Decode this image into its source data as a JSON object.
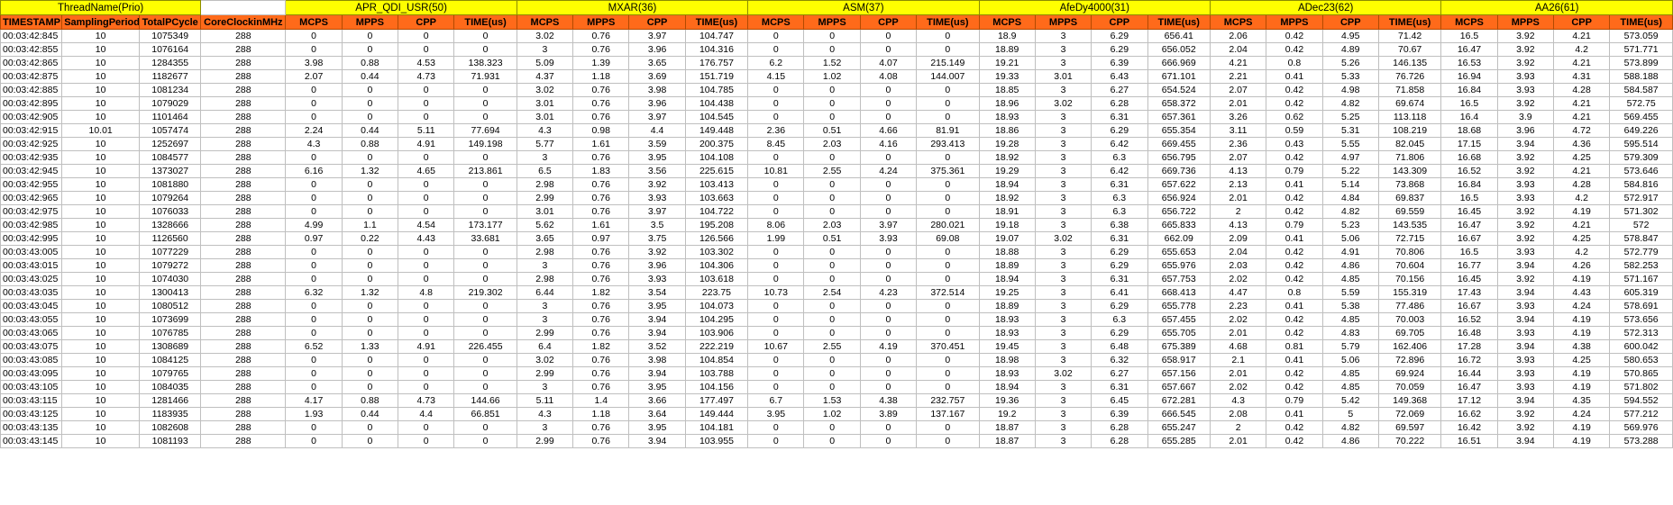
{
  "group_headers": [
    {
      "label": "ThreadName(Prio)",
      "span": 3
    },
    {
      "label": "",
      "span": 1
    },
    {
      "label": "APR_QDI_USR(50)",
      "span": 4
    },
    {
      "label": "MXAR(36)",
      "span": 4
    },
    {
      "label": "ASM(37)",
      "span": 4
    },
    {
      "label": "AfeDy4000(31)",
      "span": 4
    },
    {
      "label": "ADec23(62)",
      "span": 4
    },
    {
      "label": "AA26(61)",
      "span": 4
    }
  ],
  "columns": [
    "TIMESTAMP",
    "SamplingPeriod",
    "TotalPCycle",
    "CoreClockinMHz",
    "MCPS",
    "MPPS",
    "CPP",
    "TIME(us)",
    "MCPS",
    "MPPS",
    "CPP",
    "TIME(us)",
    "MCPS",
    "MPPS",
    "CPP",
    "TIME(us)",
    "MCPS",
    "MPPS",
    "CPP",
    "TIME(us)",
    "MCPS",
    "MPPS",
    "CPP",
    "TIME(us)",
    "MCPS",
    "MPPS",
    "CPP",
    "TIME(us)"
  ],
  "rows": [
    [
      "00:03:42:845",
      "10",
      "1075349",
      "288",
      "0",
      "0",
      "0",
      "0",
      "3.02",
      "0.76",
      "3.97",
      "104.747",
      "0",
      "0",
      "0",
      "0",
      "18.9",
      "3",
      "6.29",
      "656.41",
      "2.06",
      "0.42",
      "4.95",
      "71.42",
      "16.5",
      "3.92",
      "4.21",
      "573.059"
    ],
    [
      "00:03:42:855",
      "10",
      "1076164",
      "288",
      "0",
      "0",
      "0",
      "0",
      "3",
      "0.76",
      "3.96",
      "104.316",
      "0",
      "0",
      "0",
      "0",
      "18.89",
      "3",
      "6.29",
      "656.052",
      "2.04",
      "0.42",
      "4.89",
      "70.67",
      "16.47",
      "3.92",
      "4.2",
      "571.771"
    ],
    [
      "00:03:42:865",
      "10",
      "1284355",
      "288",
      "3.98",
      "0.88",
      "4.53",
      "138.323",
      "5.09",
      "1.39",
      "3.65",
      "176.757",
      "6.2",
      "1.52",
      "4.07",
      "215.149",
      "19.21",
      "3",
      "6.39",
      "666.969",
      "4.21",
      "0.8",
      "5.26",
      "146.135",
      "16.53",
      "3.92",
      "4.21",
      "573.899"
    ],
    [
      "00:03:42:875",
      "10",
      "1182677",
      "288",
      "2.07",
      "0.44",
      "4.73",
      "71.931",
      "4.37",
      "1.18",
      "3.69",
      "151.719",
      "4.15",
      "1.02",
      "4.08",
      "144.007",
      "19.33",
      "3.01",
      "6.43",
      "671.101",
      "2.21",
      "0.41",
      "5.33",
      "76.726",
      "16.94",
      "3.93",
      "4.31",
      "588.188"
    ],
    [
      "00:03:42:885",
      "10",
      "1081234",
      "288",
      "0",
      "0",
      "0",
      "0",
      "3.02",
      "0.76",
      "3.98",
      "104.785",
      "0",
      "0",
      "0",
      "0",
      "18.85",
      "3",
      "6.27",
      "654.524",
      "2.07",
      "0.42",
      "4.98",
      "71.858",
      "16.84",
      "3.93",
      "4.28",
      "584.587"
    ],
    [
      "00:03:42:895",
      "10",
      "1079029",
      "288",
      "0",
      "0",
      "0",
      "0",
      "3.01",
      "0.76",
      "3.96",
      "104.438",
      "0",
      "0",
      "0",
      "0",
      "18.96",
      "3.02",
      "6.28",
      "658.372",
      "2.01",
      "0.42",
      "4.82",
      "69.674",
      "16.5",
      "3.92",
      "4.21",
      "572.75"
    ],
    [
      "00:03:42:905",
      "10",
      "1101464",
      "288",
      "0",
      "0",
      "0",
      "0",
      "3.01",
      "0.76",
      "3.97",
      "104.545",
      "0",
      "0",
      "0",
      "0",
      "18.93",
      "3",
      "6.31",
      "657.361",
      "3.26",
      "0.62",
      "5.25",
      "113.118",
      "16.4",
      "3.9",
      "4.21",
      "569.455"
    ],
    [
      "00:03:42:915",
      "10.01",
      "1057474",
      "288",
      "2.24",
      "0.44",
      "5.11",
      "77.694",
      "4.3",
      "0.98",
      "4.4",
      "149.448",
      "2.36",
      "0.51",
      "4.66",
      "81.91",
      "18.86",
      "3",
      "6.29",
      "655.354",
      "3.11",
      "0.59",
      "5.31",
      "108.219",
      "18.68",
      "3.96",
      "4.72",
      "649.226"
    ],
    [
      "00:03:42:925",
      "10",
      "1252697",
      "288",
      "4.3",
      "0.88",
      "4.91",
      "149.198",
      "5.77",
      "1.61",
      "3.59",
      "200.375",
      "8.45",
      "2.03",
      "4.16",
      "293.413",
      "19.28",
      "3",
      "6.42",
      "669.455",
      "2.36",
      "0.43",
      "5.55",
      "82.045",
      "17.15",
      "3.94",
      "4.36",
      "595.514"
    ],
    [
      "00:03:42:935",
      "10",
      "1084577",
      "288",
      "0",
      "0",
      "0",
      "0",
      "3",
      "0.76",
      "3.95",
      "104.108",
      "0",
      "0",
      "0",
      "0",
      "18.92",
      "3",
      "6.3",
      "656.795",
      "2.07",
      "0.42",
      "4.97",
      "71.806",
      "16.68",
      "3.92",
      "4.25",
      "579.309"
    ],
    [
      "00:03:42:945",
      "10",
      "1373027",
      "288",
      "6.16",
      "1.32",
      "4.65",
      "213.861",
      "6.5",
      "1.83",
      "3.56",
      "225.615",
      "10.81",
      "2.55",
      "4.24",
      "375.361",
      "19.29",
      "3",
      "6.42",
      "669.736",
      "4.13",
      "0.79",
      "5.22",
      "143.309",
      "16.52",
      "3.92",
      "4.21",
      "573.646"
    ],
    [
      "00:03:42:955",
      "10",
      "1081880",
      "288",
      "0",
      "0",
      "0",
      "0",
      "2.98",
      "0.76",
      "3.92",
      "103.413",
      "0",
      "0",
      "0",
      "0",
      "18.94",
      "3",
      "6.31",
      "657.622",
      "2.13",
      "0.41",
      "5.14",
      "73.868",
      "16.84",
      "3.93",
      "4.28",
      "584.816"
    ],
    [
      "00:03:42:965",
      "10",
      "1079264",
      "288",
      "0",
      "0",
      "0",
      "0",
      "2.99",
      "0.76",
      "3.93",
      "103.663",
      "0",
      "0",
      "0",
      "0",
      "18.92",
      "3",
      "6.3",
      "656.924",
      "2.01",
      "0.42",
      "4.84",
      "69.837",
      "16.5",
      "3.93",
      "4.2",
      "572.917"
    ],
    [
      "00:03:42:975",
      "10",
      "1076033",
      "288",
      "0",
      "0",
      "0",
      "0",
      "3.01",
      "0.76",
      "3.97",
      "104.722",
      "0",
      "0",
      "0",
      "0",
      "18.91",
      "3",
      "6.3",
      "656.722",
      "2",
      "0.42",
      "4.82",
      "69.559",
      "16.45",
      "3.92",
      "4.19",
      "571.302"
    ],
    [
      "00:03:42:985",
      "10",
      "1328666",
      "288",
      "4.99",
      "1.1",
      "4.54",
      "173.177",
      "5.62",
      "1.61",
      "3.5",
      "195.208",
      "8.06",
      "2.03",
      "3.97",
      "280.021",
      "19.18",
      "3",
      "6.38",
      "665.833",
      "4.13",
      "0.79",
      "5.23",
      "143.535",
      "16.47",
      "3.92",
      "4.21",
      "572"
    ],
    [
      "00:03:42:995",
      "10",
      "1126560",
      "288",
      "0.97",
      "0.22",
      "4.43",
      "33.681",
      "3.65",
      "0.97",
      "3.75",
      "126.566",
      "1.99",
      "0.51",
      "3.93",
      "69.08",
      "19.07",
      "3.02",
      "6.31",
      "662.09",
      "2.09",
      "0.41",
      "5.06",
      "72.715",
      "16.67",
      "3.92",
      "4.25",
      "578.847"
    ],
    [
      "00:03:43:005",
      "10",
      "1077229",
      "288",
      "0",
      "0",
      "0",
      "0",
      "2.98",
      "0.76",
      "3.92",
      "103.302",
      "0",
      "0",
      "0",
      "0",
      "18.88",
      "3",
      "6.29",
      "655.653",
      "2.04",
      "0.42",
      "4.91",
      "70.806",
      "16.5",
      "3.93",
      "4.2",
      "572.779"
    ],
    [
      "00:03:43:015",
      "10",
      "1079272",
      "288",
      "0",
      "0",
      "0",
      "0",
      "3",
      "0.76",
      "3.96",
      "104.306",
      "0",
      "0",
      "0",
      "0",
      "18.89",
      "3",
      "6.29",
      "655.976",
      "2.03",
      "0.42",
      "4.86",
      "70.604",
      "16.77",
      "3.94",
      "4.26",
      "582.253"
    ],
    [
      "00:03:43:025",
      "10",
      "1074030",
      "288",
      "0",
      "0",
      "0",
      "0",
      "2.98",
      "0.76",
      "3.93",
      "103.618",
      "0",
      "0",
      "0",
      "0",
      "18.94",
      "3",
      "6.31",
      "657.753",
      "2.02",
      "0.42",
      "4.85",
      "70.156",
      "16.45",
      "3.92",
      "4.19",
      "571.167"
    ],
    [
      "00:03:43:035",
      "10",
      "1300413",
      "288",
      "6.32",
      "1.32",
      "4.8",
      "219.302",
      "6.44",
      "1.82",
      "3.54",
      "223.75",
      "10.73",
      "2.54",
      "4.23",
      "372.514",
      "19.25",
      "3",
      "6.41",
      "668.413",
      "4.47",
      "0.8",
      "5.59",
      "155.319",
      "17.43",
      "3.94",
      "4.43",
      "605.319"
    ],
    [
      "00:03:43:045",
      "10",
      "1080512",
      "288",
      "0",
      "0",
      "0",
      "0",
      "3",
      "0.76",
      "3.95",
      "104.073",
      "0",
      "0",
      "0",
      "0",
      "18.89",
      "3",
      "6.29",
      "655.778",
      "2.23",
      "0.41",
      "5.38",
      "77.486",
      "16.67",
      "3.93",
      "4.24",
      "578.691"
    ],
    [
      "00:03:43:055",
      "10",
      "1073699",
      "288",
      "0",
      "0",
      "0",
      "0",
      "3",
      "0.76",
      "3.94",
      "104.295",
      "0",
      "0",
      "0",
      "0",
      "18.93",
      "3",
      "6.3",
      "657.455",
      "2.02",
      "0.42",
      "4.85",
      "70.003",
      "16.52",
      "3.94",
      "4.19",
      "573.656"
    ],
    [
      "00:03:43:065",
      "10",
      "1076785",
      "288",
      "0",
      "0",
      "0",
      "0",
      "2.99",
      "0.76",
      "3.94",
      "103.906",
      "0",
      "0",
      "0",
      "0",
      "18.93",
      "3",
      "6.29",
      "655.705",
      "2.01",
      "0.42",
      "4.83",
      "69.705",
      "16.48",
      "3.93",
      "4.19",
      "572.313"
    ],
    [
      "00:03:43:075",
      "10",
      "1308689",
      "288",
      "6.52",
      "1.33",
      "4.91",
      "226.455",
      "6.4",
      "1.82",
      "3.52",
      "222.219",
      "10.67",
      "2.55",
      "4.19",
      "370.451",
      "19.45",
      "3",
      "6.48",
      "675.389",
      "4.68",
      "0.81",
      "5.79",
      "162.406",
      "17.28",
      "3.94",
      "4.38",
      "600.042"
    ],
    [
      "00:03:43:085",
      "10",
      "1084125",
      "288",
      "0",
      "0",
      "0",
      "0",
      "3.02",
      "0.76",
      "3.98",
      "104.854",
      "0",
      "0",
      "0",
      "0",
      "18.98",
      "3",
      "6.32",
      "658.917",
      "2.1",
      "0.41",
      "5.06",
      "72.896",
      "16.72",
      "3.93",
      "4.25",
      "580.653"
    ],
    [
      "00:03:43:095",
      "10",
      "1079765",
      "288",
      "0",
      "0",
      "0",
      "0",
      "2.99",
      "0.76",
      "3.94",
      "103.788",
      "0",
      "0",
      "0",
      "0",
      "18.93",
      "3.02",
      "6.27",
      "657.156",
      "2.01",
      "0.42",
      "4.85",
      "69.924",
      "16.44",
      "3.93",
      "4.19",
      "570.865"
    ],
    [
      "00:03:43:105",
      "10",
      "1084035",
      "288",
      "0",
      "0",
      "0",
      "0",
      "3",
      "0.76",
      "3.95",
      "104.156",
      "0",
      "0",
      "0",
      "0",
      "18.94",
      "3",
      "6.31",
      "657.667",
      "2.02",
      "0.42",
      "4.85",
      "70.059",
      "16.47",
      "3.93",
      "4.19",
      "571.802"
    ],
    [
      "00:03:43:115",
      "10",
      "1281466",
      "288",
      "4.17",
      "0.88",
      "4.73",
      "144.66",
      "5.11",
      "1.4",
      "3.66",
      "177.497",
      "6.7",
      "1.53",
      "4.38",
      "232.757",
      "19.36",
      "3",
      "6.45",
      "672.281",
      "4.3",
      "0.79",
      "5.42",
      "149.368",
      "17.12",
      "3.94",
      "4.35",
      "594.552"
    ],
    [
      "00:03:43:125",
      "10",
      "1183935",
      "288",
      "1.93",
      "0.44",
      "4.4",
      "66.851",
      "4.3",
      "1.18",
      "3.64",
      "149.444",
      "3.95",
      "1.02",
      "3.89",
      "137.167",
      "19.2",
      "3",
      "6.39",
      "666.545",
      "2.08",
      "0.41",
      "5",
      "72.069",
      "16.62",
      "3.92",
      "4.24",
      "577.212"
    ],
    [
      "00:03:43:135",
      "10",
      "1082608",
      "288",
      "0",
      "0",
      "0",
      "0",
      "3",
      "0.76",
      "3.95",
      "104.181",
      "0",
      "0",
      "0",
      "0",
      "18.87",
      "3",
      "6.28",
      "655.247",
      "2",
      "0.42",
      "4.82",
      "69.597",
      "16.42",
      "3.92",
      "4.19",
      "569.976"
    ],
    [
      "00:03:43:145",
      "10",
      "1081193",
      "288",
      "0",
      "0",
      "0",
      "0",
      "2.99",
      "0.76",
      "3.94",
      "103.955",
      "0",
      "0",
      "0",
      "0",
      "18.87",
      "3",
      "6.28",
      "655.285",
      "2.01",
      "0.42",
      "4.86",
      "70.222",
      "16.51",
      "3.94",
      "4.19",
      "573.288"
    ]
  ]
}
